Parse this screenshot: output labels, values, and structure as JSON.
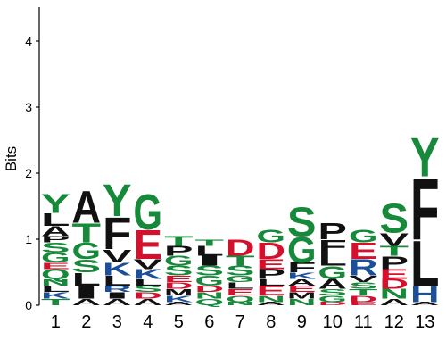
{
  "colors": {
    "green": "#17893a",
    "black": "#111111",
    "red": "#d4102c",
    "blue": "#1b4f9a",
    "purple": "#8a2a8a",
    "axis": "#000000"
  },
  "chart_data": {
    "type": "sequence-logo",
    "ylabel": "Bits",
    "ylim": [
      0,
      4.5
    ],
    "yticks": [
      0,
      1,
      2,
      3,
      4
    ],
    "positions": [
      "1",
      "2",
      "3",
      "4",
      "5",
      "6",
      "7",
      "8",
      "9",
      "10",
      "11",
      "12",
      "13"
    ],
    "stacks": [
      [
        {
          "l": "T",
          "h": 0.1
        },
        {
          "l": "K",
          "h": 0.1
        },
        {
          "l": "L",
          "h": 0.1
        },
        {
          "l": "N",
          "h": 0.1
        },
        {
          "l": "Q",
          "h": 0.15
        },
        {
          "l": "E",
          "h": 0.1
        },
        {
          "l": "G",
          "h": 0.15
        },
        {
          "l": "S",
          "h": 0.15
        },
        {
          "l": "P",
          "h": 0.1
        },
        {
          "l": "A",
          "h": 0.15
        },
        {
          "l": "L",
          "h": 0.2
        },
        {
          "l": "Y",
          "h": 0.3
        }
      ],
      [
        {
          "l": "A",
          "h": 0.1
        },
        {
          "l": "I",
          "h": 0.2
        },
        {
          "l": "L",
          "h": 0.2
        },
        {
          "l": "S",
          "h": 0.2
        },
        {
          "l": "G",
          "h": 0.25
        },
        {
          "l": "T",
          "h": 0.3
        },
        {
          "l": "A",
          "h": 0.5
        }
      ],
      [
        {
          "l": "A",
          "h": 0.1
        },
        {
          "l": "I",
          "h": 0.1
        },
        {
          "l": "R",
          "h": 0.1
        },
        {
          "l": "L",
          "h": 0.15
        },
        {
          "l": "K",
          "h": 0.2
        },
        {
          "l": "V",
          "h": 0.2
        },
        {
          "l": "F",
          "h": 0.5
        },
        {
          "l": "Y",
          "h": 0.5
        }
      ],
      [
        {
          "l": "A",
          "h": 0.1
        },
        {
          "l": "D",
          "h": 0.1
        },
        {
          "l": "S",
          "h": 0.1
        },
        {
          "l": "L",
          "h": 0.1
        },
        {
          "l": "K",
          "h": 0.15
        },
        {
          "l": "V",
          "h": 0.15
        },
        {
          "l": "E",
          "h": 0.45
        },
        {
          "l": "G",
          "h": 0.55
        }
      ],
      [
        {
          "l": "A",
          "h": 0.05
        },
        {
          "l": "K",
          "h": 0.1
        },
        {
          "l": "M",
          "h": 0.1
        },
        {
          "l": "D",
          "h": 0.1
        },
        {
          "l": "E",
          "h": 0.1
        },
        {
          "l": "S",
          "h": 0.15
        },
        {
          "l": "G",
          "h": 0.15
        },
        {
          "l": "P",
          "h": 0.15
        },
        {
          "l": "T",
          "h": 0.15
        }
      ],
      [
        {
          "l": "Q",
          "h": 0.1
        },
        {
          "l": "N",
          "h": 0.1
        },
        {
          "l": "D",
          "h": 0.1
        },
        {
          "l": "G",
          "h": 0.15
        },
        {
          "l": "S",
          "h": 0.15
        },
        {
          "l": "I",
          "h": 0.15
        },
        {
          "l": "L",
          "h": 0.15
        },
        {
          "l": "T",
          "h": 0.1
        }
      ],
      [
        {
          "l": "N",
          "h": 0.05
        },
        {
          "l": "Q",
          "h": 0.1
        },
        {
          "l": "E",
          "h": 0.1
        },
        {
          "l": "L",
          "h": 0.1
        },
        {
          "l": "G",
          "h": 0.1
        },
        {
          "l": "S",
          "h": 0.15
        },
        {
          "l": "T",
          "h": 0.15
        },
        {
          "l": "D",
          "h": 0.25
        }
      ],
      [
        {
          "l": "A",
          "h": 0.05
        },
        {
          "l": "N",
          "h": 0.1
        },
        {
          "l": "E",
          "h": 0.15
        },
        {
          "l": "L",
          "h": 0.1
        },
        {
          "l": "P",
          "h": 0.15
        },
        {
          "l": "E",
          "h": 0.15
        },
        {
          "l": "D",
          "h": 0.25
        },
        {
          "l": "G",
          "h": 0.2
        }
      ],
      [
        {
          "l": "N",
          "h": 0.1
        },
        {
          "l": "M",
          "h": 0.1
        },
        {
          "l": "E",
          "h": 0.1
        },
        {
          "l": "A",
          "h": 0.1
        },
        {
          "l": "K",
          "h": 0.1
        },
        {
          "l": "F",
          "h": 0.15
        },
        {
          "l": "G",
          "h": 0.4
        },
        {
          "l": "S",
          "h": 0.45
        }
      ],
      [
        {
          "l": "D",
          "h": 0.05
        },
        {
          "l": "G",
          "h": 0.1
        },
        {
          "l": "S",
          "h": 0.1
        },
        {
          "l": "A",
          "h": 0.15
        },
        {
          "l": "G",
          "h": 0.2
        },
        {
          "l": "L",
          "h": 0.2
        },
        {
          "l": "F",
          "h": 0.2
        },
        {
          "l": "P",
          "h": 0.25
        }
      ],
      [
        {
          "l": "E",
          "h": 0.05
        },
        {
          "l": "D",
          "h": 0.1
        },
        {
          "l": "T",
          "h": 0.1
        },
        {
          "l": "S",
          "h": 0.1
        },
        {
          "l": "V",
          "h": 0.1
        },
        {
          "l": "R",
          "h": 0.25
        },
        {
          "l": "E",
          "h": 0.25
        },
        {
          "l": "G",
          "h": 0.2
        }
      ],
      [
        {
          "l": "A",
          "h": 0.1
        },
        {
          "l": "N",
          "h": 0.15
        },
        {
          "l": "D",
          "h": 0.15
        },
        {
          "l": "E",
          "h": 0.15
        },
        {
          "l": "P",
          "h": 0.2
        },
        {
          "l": "T",
          "h": 0.15
        },
        {
          "l": "V",
          "h": 0.2
        },
        {
          "l": "S",
          "h": 0.45
        }
      ],
      [
        {
          "l": "A",
          "h": 0.05
        },
        {
          "l": "H",
          "h": 0.25
        },
        {
          "l": "L",
          "h": 0.7
        },
        {
          "l": "F",
          "h": 0.95
        },
        {
          "l": "Y",
          "h": 0.6
        }
      ]
    ]
  }
}
